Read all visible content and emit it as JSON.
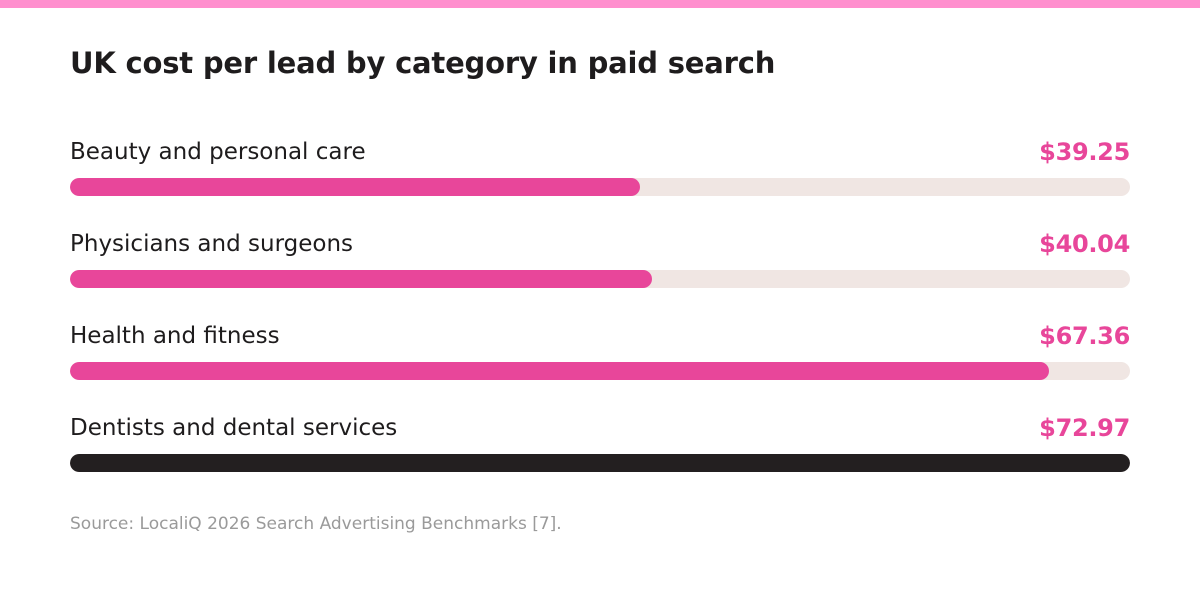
{
  "colors": {
    "accent_bar": "#ff8fce",
    "bar_pink": "#e8469a",
    "bar_dark": "#231f20",
    "track": "#f0e6e3",
    "value_text": "#e8469a",
    "title_text": "#1e1c1d",
    "source_text": "#9a9a9a"
  },
  "chart_data": {
    "type": "bar",
    "orientation": "horizontal",
    "title": "UK cost per lead by category in paid search",
    "categories": [
      "Beauty and personal care",
      "Physicians and surgeons",
      "Health and fitness",
      "Dentists and dental services"
    ],
    "values": [
      39.25,
      40.04,
      67.36,
      72.97
    ],
    "value_labels": [
      "$39.25",
      "$40.04",
      "$67.36",
      "$72.97"
    ],
    "xlim": [
      0,
      72.97
    ],
    "grid": false,
    "highlight_index": 3
  },
  "source": "Source: LocaliQ 2026 Search Advertising Benchmarks [7]."
}
